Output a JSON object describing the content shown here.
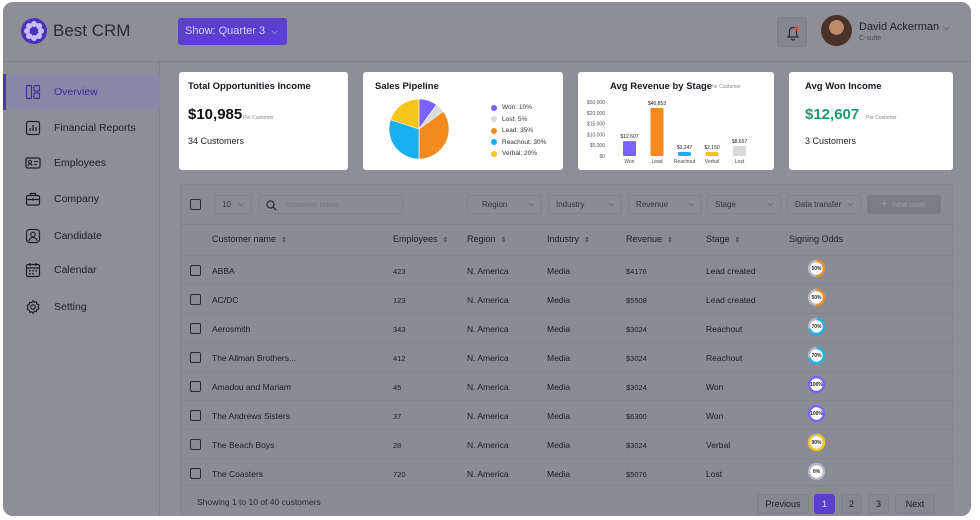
{
  "app": {
    "name": "Best CRM"
  },
  "header": {
    "show_filter": "Show: Quarter 3",
    "user": {
      "name": "David Ackerman",
      "role": "C-suite"
    }
  },
  "sidebar": {
    "items": [
      {
        "label": "Overview",
        "icon": "layout-icon",
        "active": true
      },
      {
        "label": "Financial Reports",
        "icon": "chart-icon"
      },
      {
        "label": "Employees",
        "icon": "id-card-icon"
      },
      {
        "label": "Company",
        "icon": "briefcase-icon"
      },
      {
        "label": "Candidate",
        "icon": "user-icon"
      },
      {
        "label": "Calendar",
        "icon": "calendar-icon"
      },
      {
        "label": "Setting",
        "icon": "gear-icon"
      }
    ]
  },
  "cards": {
    "opportunities": {
      "title": "Total Opportunities Income",
      "value": "$10,985",
      "per": "Per Customer",
      "customers": "34 Customers"
    },
    "pipeline": {
      "title": "Sales Pipeline"
    },
    "avg_revenue": {
      "title": "Avg Revenue by Stage",
      "per": "Per Customer"
    },
    "won": {
      "title": "Avg Won Income",
      "value": "$12,607",
      "per": "Per Customer",
      "customers": "3 Customers"
    }
  },
  "chart_data": [
    {
      "type": "pie",
      "title": "Sales Pipeline",
      "slices": [
        {
          "name": "Won: 10%",
          "value": 10,
          "color": "#7b61ff"
        },
        {
          "name": "Lost: 5%",
          "value": 5,
          "color": "#d9d9d9"
        },
        {
          "name": "Lead: 35%",
          "value": 35,
          "color": "#f58a1f"
        },
        {
          "name": "Reachout: 30%",
          "value": 30,
          "color": "#1ab0f0"
        },
        {
          "name": "Verbal: 20%",
          "value": 20,
          "color": "#f5c518"
        }
      ]
    },
    {
      "type": "bar",
      "title": "Avg Revenue by Stage",
      "categories": [
        "Won",
        "Lead",
        "Reachout",
        "Verbal",
        "Lost"
      ],
      "values": [
        12607,
        40853,
        3247,
        2150,
        8657
      ],
      "data_labels": [
        "$12,607",
        "$40,853",
        "$3,247",
        "$2,150",
        "$8,657"
      ],
      "colors": [
        "#7b61ff",
        "#f58a1f",
        "#1ab0f0",
        "#f5c518",
        "#d9d9d9"
      ],
      "yticks": [
        "$50,000",
        "$20,000",
        "$15,000",
        "$10,000",
        "$5,000",
        "$0"
      ]
    }
  ],
  "table": {
    "page_size": "10",
    "search_placeholder": "Customer Name",
    "filters": [
      "Region",
      "Industry",
      "Revenue",
      "Stage",
      "Data transfer"
    ],
    "new_user": "new user",
    "columns": [
      "Customer name",
      "Employees",
      "Region",
      "Industry",
      "Revenue",
      "Stage",
      "Signing Odds"
    ],
    "rows": [
      {
        "name": "ABBA",
        "employees": "423",
        "region": "N. America",
        "industry": "Media",
        "revenue": "$4176",
        "stage": "Lead created",
        "odds": "50%",
        "odds_value": 50,
        "odds_color": "#f58a1f"
      },
      {
        "name": "AC/DC",
        "employees": "123",
        "region": "N. America",
        "industry": "Media",
        "revenue": "$5508",
        "stage": "Lead created",
        "odds": "50%",
        "odds_value": 50,
        "odds_color": "#f58a1f"
      },
      {
        "name": "Aerosmith",
        "employees": "343",
        "region": "N. America",
        "industry": "Media",
        "revenue": "$3024",
        "stage": "Reachout",
        "odds": "70%",
        "odds_value": 70,
        "odds_color": "#1ab0f0"
      },
      {
        "name": "The Allman Brothers...",
        "employees": "412",
        "region": "N. America",
        "industry": "Media",
        "revenue": "$3024",
        "stage": "Reachout",
        "odds": "70%",
        "odds_value": 70,
        "odds_color": "#1ab0f0"
      },
      {
        "name": "Amadou and Mariam",
        "employees": "45",
        "region": "N. America",
        "industry": "Media",
        "revenue": "$3024",
        "stage": "Won",
        "odds": "100%",
        "odds_value": 100,
        "odds_color": "#7b61ff"
      },
      {
        "name": "The Andrews Sisters",
        "employees": "37",
        "region": "N. America",
        "industry": "Media",
        "revenue": "$6300",
        "stage": "Won",
        "odds": "100%",
        "odds_value": 100,
        "odds_color": "#7b61ff"
      },
      {
        "name": "The Beach Boys",
        "employees": "28",
        "region": "N. America",
        "industry": "Media",
        "revenue": "$3024",
        "stage": "Verbal",
        "odds": "90%",
        "odds_value": 90,
        "odds_color": "#f5c518"
      },
      {
        "name": "The Coasters",
        "employees": "720",
        "region": "N. America",
        "industry": "Media",
        "revenue": "$5076",
        "stage": "Lost",
        "odds": "0%",
        "odds_value": 0,
        "odds_color": "#d9d9d9"
      }
    ],
    "footer": {
      "showing": "Showing 1 to 10 of 40 customers",
      "prev": "Previous",
      "pages": [
        "1",
        "2",
        "3"
      ],
      "next": "Next"
    }
  }
}
